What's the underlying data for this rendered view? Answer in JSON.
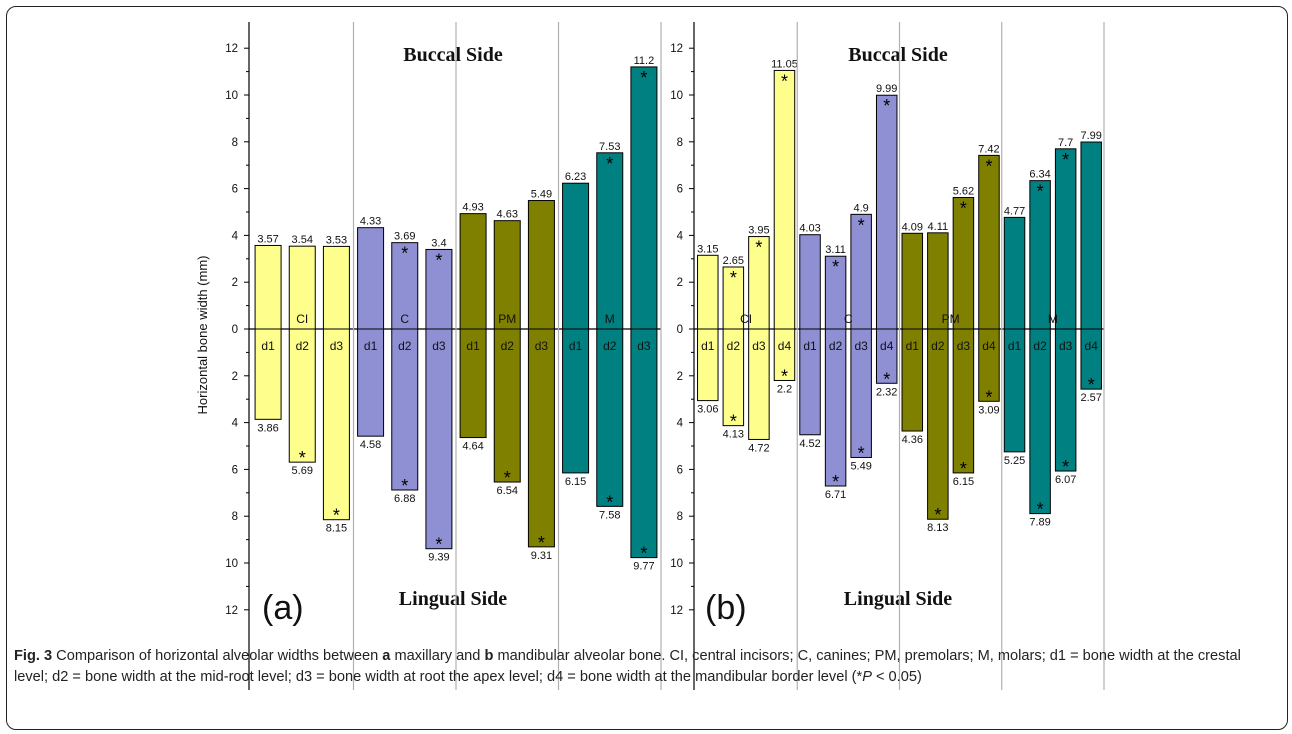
{
  "chart_data": [
    {
      "type": "bar",
      "panel_label": "(a)",
      "ylabel": "Horizontal bone width (mm)",
      "ylim": [
        -12,
        12
      ],
      "y_ticks": [
        "12",
        "10",
        "8",
        "6",
        "4",
        "2",
        "0",
        "2",
        "4",
        "6",
        "8",
        "10",
        "12"
      ],
      "top_text": "Buccal Side",
      "bottom_text": "Lingual Side",
      "groups": [
        {
          "name": "CI",
          "color": "#FDFE8C",
          "categories": [
            "d1",
            "d2",
            "d3"
          ],
          "buccal": [
            "3.57",
            "3.54",
            "3.53"
          ],
          "lingual": [
            "3.86",
            "5.69",
            "8.15"
          ],
          "buccal_star": [
            false,
            false,
            false
          ],
          "lingual_star": [
            false,
            true,
            true
          ]
        },
        {
          "name": "C",
          "color": "#8F8FD4",
          "categories": [
            "d1",
            "d2",
            "d3"
          ],
          "buccal": [
            "4.33",
            "3.69",
            "3.4"
          ],
          "lingual": [
            "4.58",
            "6.88",
            "9.39"
          ],
          "buccal_star": [
            false,
            true,
            true
          ],
          "lingual_star": [
            false,
            true,
            true
          ]
        },
        {
          "name": "PM",
          "color": "#808000",
          "categories": [
            "d1",
            "d2",
            "d3"
          ],
          "buccal": [
            "4.93",
            "4.63",
            "5.49"
          ],
          "lingual": [
            "4.64",
            "6.54",
            "9.31"
          ],
          "buccal_star": [
            false,
            false,
            false
          ],
          "lingual_star": [
            false,
            true,
            true
          ]
        },
        {
          "name": "M",
          "color": "#008080",
          "categories": [
            "d1",
            "d2",
            "d3"
          ],
          "buccal": [
            "6.23",
            "7.53",
            "11.2"
          ],
          "lingual": [
            "6.15",
            "7.58",
            "9.77"
          ],
          "buccal_star": [
            false,
            true,
            true
          ],
          "lingual_star": [
            false,
            true,
            true
          ]
        }
      ]
    },
    {
      "type": "bar",
      "panel_label": "(b)",
      "ylabel": "",
      "ylim": [
        -12,
        12
      ],
      "y_ticks": [
        "12",
        "10",
        "8",
        "6",
        "4",
        "2",
        "0",
        "2",
        "4",
        "6",
        "8",
        "10",
        "12"
      ],
      "top_text": "Buccal Side",
      "bottom_text": "Lingual Side",
      "groups": [
        {
          "name": "CI",
          "color": "#FDFE8C",
          "categories": [
            "d1",
            "d2",
            "d3",
            "d4"
          ],
          "buccal": [
            "3.15",
            "2.65",
            "3.95",
            "11.05"
          ],
          "lingual": [
            "3.06",
            "4.13",
            "4.72",
            "2.2"
          ],
          "buccal_star": [
            false,
            true,
            true,
            true
          ],
          "lingual_star": [
            false,
            true,
            false,
            true
          ]
        },
        {
          "name": "C",
          "color": "#8F8FD4",
          "categories": [
            "d1",
            "d2",
            "d3",
            "d4"
          ],
          "buccal": [
            "4.03",
            "3.11",
            "4.9",
            "9.99"
          ],
          "lingual": [
            "4.52",
            "6.71",
            "5.49",
            "2.32"
          ],
          "buccal_star": [
            false,
            true,
            true,
            true
          ],
          "lingual_star": [
            false,
            true,
            true,
            true
          ]
        },
        {
          "name": "PM",
          "color": "#808000",
          "categories": [
            "d1",
            "d2",
            "d3",
            "d4"
          ],
          "buccal": [
            "4.09",
            "4.11",
            "5.62",
            "7.42"
          ],
          "lingual": [
            "4.36",
            "8.13",
            "6.15",
            "3.09"
          ],
          "buccal_star": [
            false,
            false,
            true,
            true
          ],
          "lingual_star": [
            false,
            true,
            true,
            true
          ]
        },
        {
          "name": "M",
          "color": "#008080",
          "categories": [
            "d1",
            "d2",
            "d3",
            "d4"
          ],
          "buccal": [
            "4.77",
            "6.34",
            "7.7",
            "7.99"
          ],
          "lingual": [
            "5.25",
            "7.89",
            "6.07",
            "2.57"
          ],
          "buccal_star": [
            false,
            true,
            true,
            false
          ],
          "lingual_star": [
            false,
            true,
            true,
            true
          ]
        }
      ]
    }
  ],
  "caption": {
    "fig": "Fig. 3",
    "t1": " Comparison of horizontal alveolar widths between ",
    "a": "a",
    "t2": " maxillary and ",
    "b": "b",
    "t3": " mandibular alveolar bone. CI, central incisors; C, canines; PM, premolars; M, molars; d1 = bone width at the crestal level; d2 = bone width at the mid-root level; d3 = bone width at root the apex level; d4 = bone width at the mandibular border level (*",
    "p": "P",
    "t4": " < 0.05)"
  }
}
